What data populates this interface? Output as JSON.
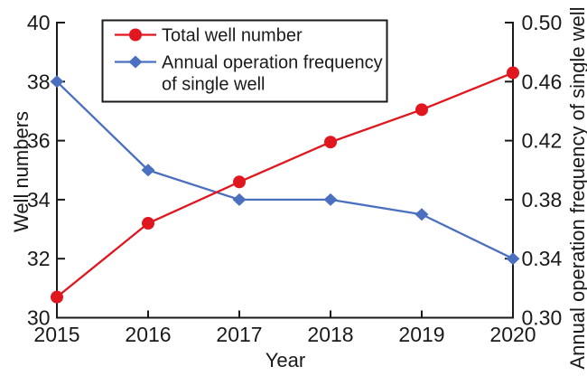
{
  "chart_data": {
    "type": "line",
    "title": "",
    "xlabel": "Year",
    "x": [
      2015,
      2016,
      2017,
      2018,
      2019,
      2020
    ],
    "x_tick_labels": [
      "2015",
      "2016",
      "2017",
      "2018",
      "2019",
      "2020"
    ],
    "left_axis": {
      "label": "Well numbers",
      "range": [
        30,
        40
      ],
      "ticks": [
        30,
        32,
        34,
        36,
        38,
        40
      ],
      "tick_labels": [
        "30",
        "32",
        "34",
        "36",
        "38",
        "40"
      ]
    },
    "right_axis": {
      "label": "Annual operation frequency of single well",
      "range": [
        0.3,
        0.5
      ],
      "ticks": [
        0.3,
        0.34,
        0.38,
        0.42,
        0.46,
        0.5
      ],
      "tick_labels": [
        "0.30",
        "0.34",
        "0.38",
        "0.42",
        "0.46",
        "0.50"
      ]
    },
    "series": [
      {
        "name": "Total well number",
        "axis": "left",
        "color": "#e0171f",
        "marker": "circle",
        "values": [
          30.7,
          33.2,
          34.6,
          35.95,
          37.05,
          38.3
        ]
      },
      {
        "name": "Annual operation frequency of single well",
        "axis": "right",
        "color": "#4b70bf",
        "marker": "diamond",
        "values": [
          0.46,
          0.4,
          0.38,
          0.38,
          0.37,
          0.34
        ]
      }
    ],
    "legend": {
      "position": "top-left-inside",
      "border_color": "#1a1a1a",
      "entries": [
        {
          "lines": [
            "Total well number"
          ]
        },
        {
          "lines": [
            "Annual operation frequency",
            "of single well"
          ]
        }
      ]
    },
    "grid": false,
    "axis_color": "#1a1a1a"
  }
}
